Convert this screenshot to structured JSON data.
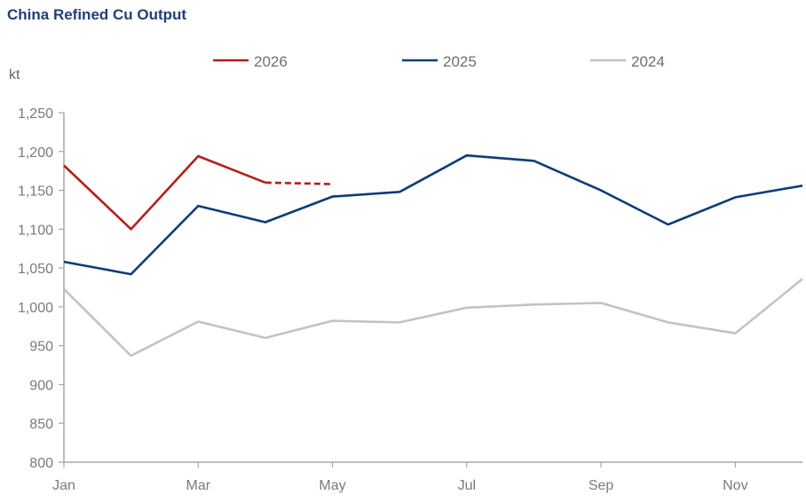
{
  "chart_data": {
    "type": "line",
    "title": "China Refined Cu Output",
    "ylabel": "kt",
    "xlabel": "",
    "ylim": [
      800,
      1250
    ],
    "yticks": [
      800,
      850,
      900,
      950,
      1000,
      1050,
      1100,
      1150,
      1200,
      1250
    ],
    "ytick_labels": [
      "800",
      "850",
      "900",
      "950",
      "1,000",
      "1,050",
      "1,100",
      "1,150",
      "1,200",
      "1,250"
    ],
    "categories": [
      "Jan",
      "Feb",
      "Mar",
      "Apr",
      "May",
      "Jun",
      "Jul",
      "Aug",
      "Sep",
      "Oct",
      "Nov",
      "Dec"
    ],
    "xtick_labels": [
      "Jan",
      "Mar",
      "May",
      "Jul",
      "Sep",
      "Nov"
    ],
    "legend_position": "top",
    "grid": false,
    "series": [
      {
        "name": "2026",
        "color": "#b71c1c",
        "values": [
          1182,
          1100,
          1194,
          1160,
          null,
          null,
          null,
          null,
          null,
          null,
          null,
          null
        ],
        "dashed_to": {
          "index": 4,
          "value": 1158
        }
      },
      {
        "name": "2025",
        "color": "#0d3b7a",
        "values": [
          1058,
          1042,
          1130,
          1109,
          1142,
          1148,
          1195,
          1188,
          1150,
          1106,
          1141,
          1156
        ]
      },
      {
        "name": "2024",
        "color": "#c3c3c3",
        "values": [
          1023,
          937,
          981,
          960,
          982,
          980,
          999,
          1003,
          1005,
          980,
          966,
          1036
        ]
      }
    ]
  }
}
